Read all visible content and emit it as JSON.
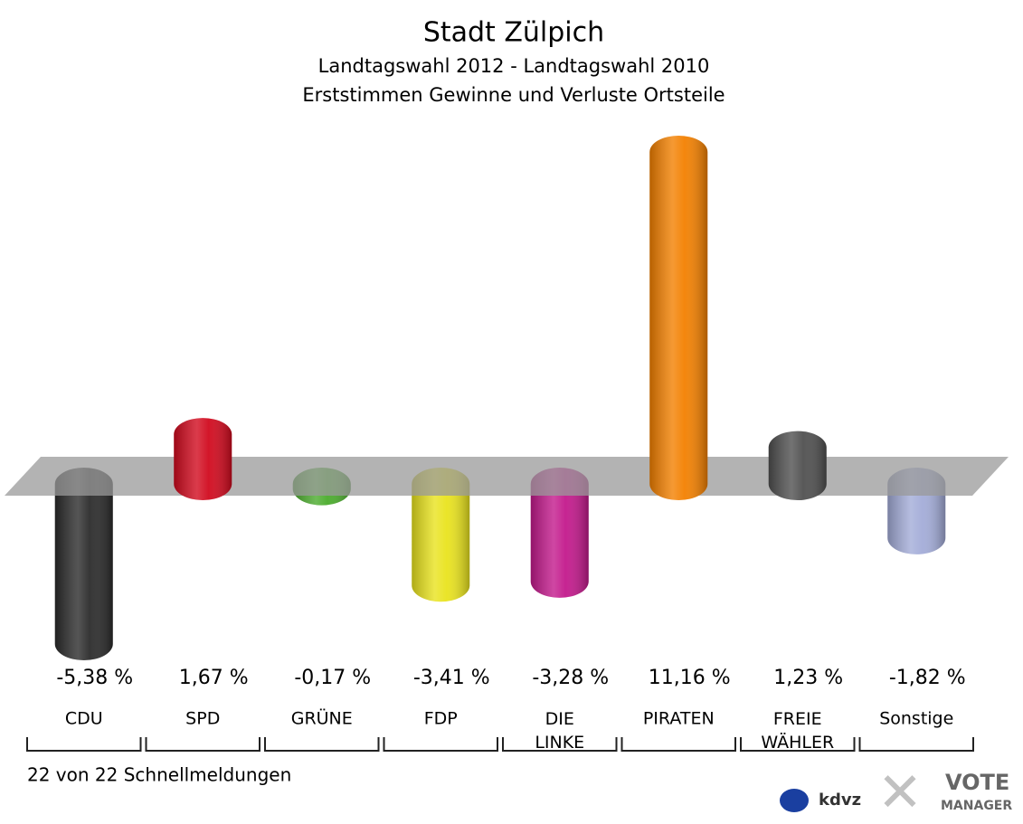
{
  "chart_data": {
    "type": "bar3d",
    "title": "Stadt Zülpich",
    "subtitle": [
      "Landtagswahl 2012 - Landtagswahl 2010",
      "Erststimmen Gewinne und Verluste Ortsteile"
    ],
    "categories": [
      "CDU",
      "SPD",
      "GRÜNE",
      "FDP",
      "DIE LINKE",
      "PIRATEN",
      "FREIE WÄHLER",
      "Sonstige"
    ],
    "values": [
      -5.38,
      1.67,
      -0.17,
      -3.41,
      -3.28,
      11.16,
      1.23,
      -1.82
    ],
    "value_labels": [
      "-5,38 %",
      "1,67 %",
      "-0,17 %",
      "-3,41 %",
      "-3,28 %",
      "11,16 %",
      "1,23 %",
      "-1,82 %"
    ],
    "colors": [
      "#2b2b2b",
      "#d10a1e",
      "#4aab2c",
      "#e9e31d",
      "#c3198c",
      "#f38000",
      "#505050",
      "#a3acd8"
    ],
    "footnote": "22 von 22 Schnellmeldungen",
    "logo_texts": [
      "kdvz",
      "VOTE",
      "MANAGER"
    ]
  }
}
